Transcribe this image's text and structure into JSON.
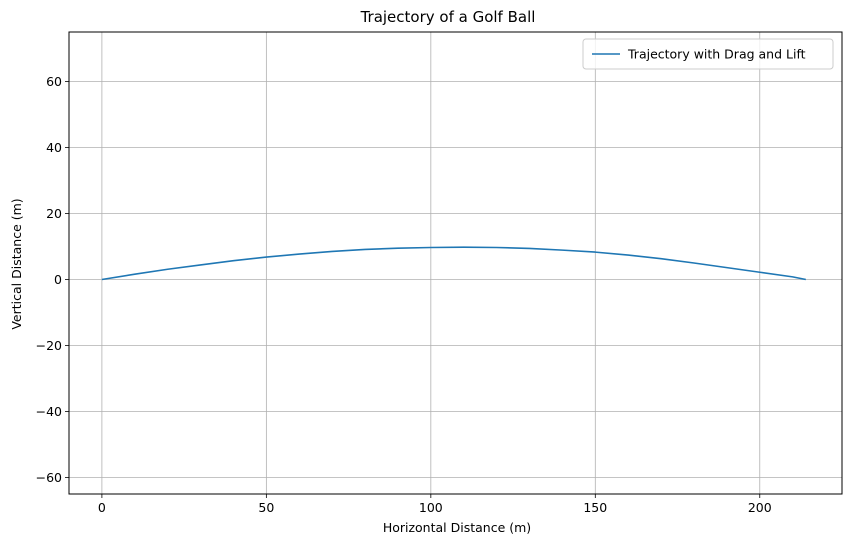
{
  "chart_data": {
    "type": "line",
    "title": "Trajectory of a Golf Ball",
    "xlabel": "Horizontal Distance (m)",
    "ylabel": "Vertical Distance (m)",
    "xlim": [
      -10,
      225
    ],
    "ylim": [
      -65,
      75
    ],
    "xticks": [
      0,
      50,
      100,
      150,
      200
    ],
    "yticks": [
      -60,
      -40,
      -20,
      0,
      20,
      40,
      60
    ],
    "grid": true,
    "legend_position": "top-right",
    "series": [
      {
        "name": "Trajectory with Drag and Lift",
        "color": "#1f77b4",
        "x": [
          0,
          10,
          20,
          30,
          40,
          50,
          60,
          70,
          80,
          90,
          100,
          110,
          120,
          130,
          140,
          150,
          160,
          170,
          180,
          190,
          200,
          210,
          214
        ],
        "y": [
          0,
          1.6,
          3.1,
          4.4,
          5.7,
          6.8,
          7.7,
          8.5,
          9.1,
          9.5,
          9.7,
          9.8,
          9.7,
          9.4,
          8.9,
          8.3,
          7.4,
          6.3,
          5.0,
          3.6,
          2.2,
          0.8,
          0
        ]
      }
    ]
  }
}
